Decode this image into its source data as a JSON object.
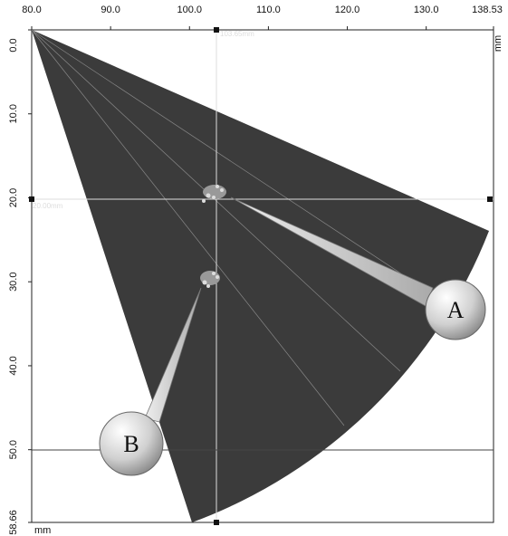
{
  "x_axis": {
    "ticks": [
      "80.0",
      "90.0",
      "100.0",
      "110.0",
      "120.0",
      "130.0",
      "138.53"
    ],
    "unit": "mm"
  },
  "y_axis": {
    "ticks": [
      "0.0",
      "10.0",
      "20.0",
      "30.0",
      "40.0",
      "50.0",
      "58.66"
    ],
    "unit": "mm"
  },
  "cursors": {
    "vertical": "103.65mm",
    "horizontal": "20.00mm"
  },
  "callouts": {
    "a": "A",
    "b": "B"
  }
}
